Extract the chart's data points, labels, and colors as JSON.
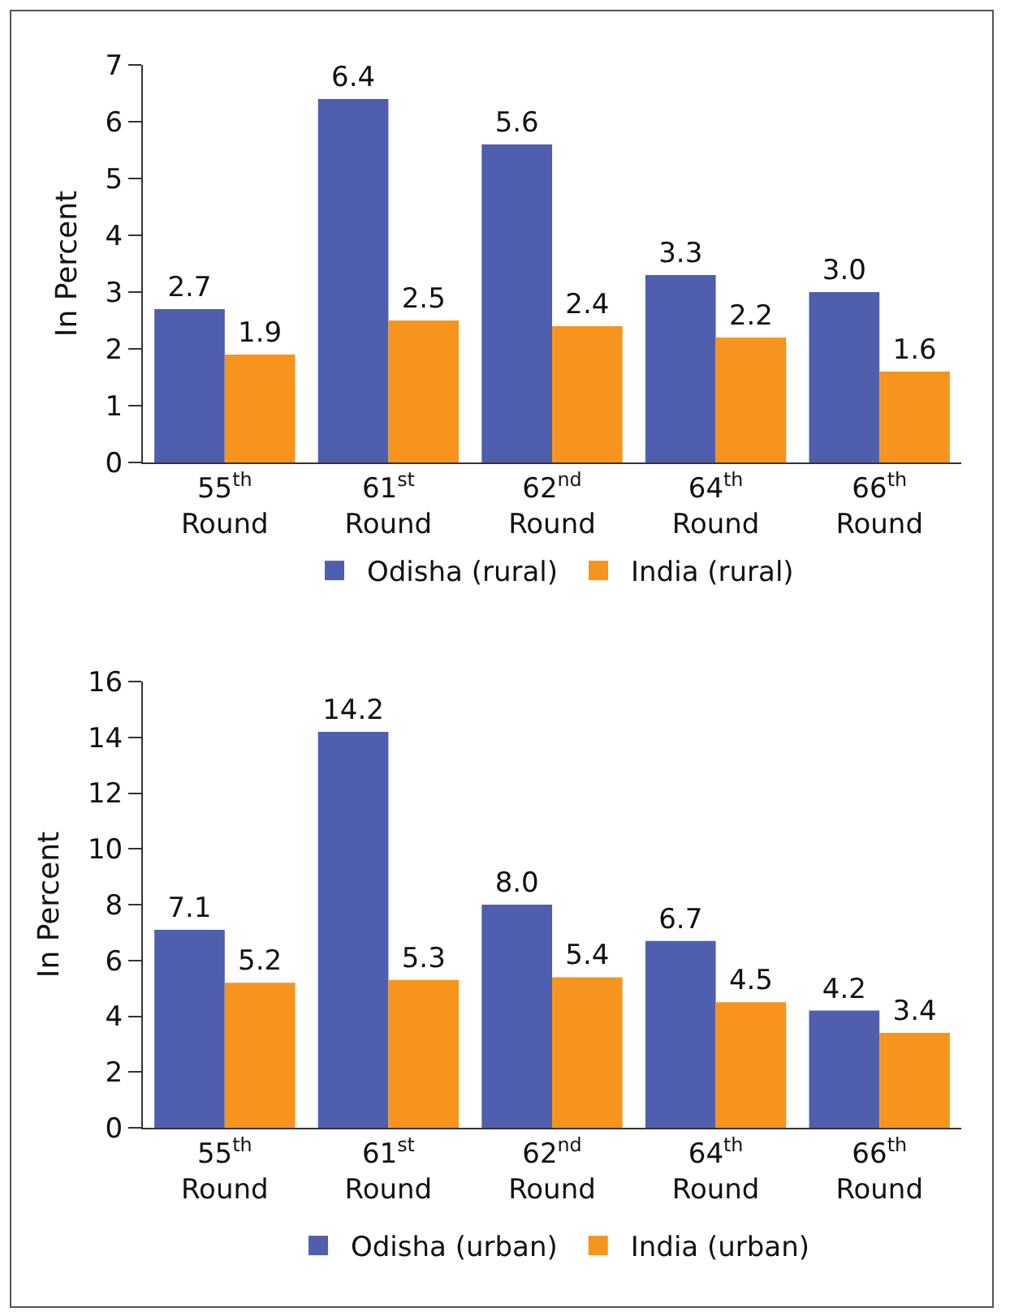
{
  "chart_data": [
    {
      "type": "bar",
      "ylabel": "In Percent",
      "categories": [
        "55$^{th}$\nRound",
        "61$^{st}$\nRound",
        "62$^{nd}$\nRound",
        "64$^{th}$\nRound",
        "66$^{th}$\nRound"
      ],
      "ylim": [
        0,
        7
      ],
      "yticks": [
        0,
        1,
        2,
        3,
        4,
        5,
        6,
        7
      ],
      "grid": false,
      "legend": "bottom",
      "series": [
        {
          "name": "Odisha (rural)",
          "color": "#4f5fae",
          "values": [
            2.7,
            6.4,
            5.6,
            3.3,
            3.0
          ],
          "value_labels": [
            "2.7",
            "6.4",
            "5.6",
            "3.3",
            "3.0"
          ]
        },
        {
          "name": "India (rural)",
          "color": "#f7941d",
          "values": [
            1.9,
            2.5,
            2.4,
            2.2,
            1.6
          ],
          "value_labels": [
            "1.9",
            "2.5",
            "2.4",
            "2.2",
            "1.6"
          ]
        }
      ]
    },
    {
      "type": "bar",
      "ylabel": "In Percent",
      "categories": [
        "55$^{th}$\nRound",
        "61$^{st}$\nRound",
        "62$^{nd}$\nRound",
        "64$^{th}$\nRound",
        "66$^{th}$\nRound"
      ],
      "ylim": [
        0,
        16
      ],
      "yticks": [
        0,
        2,
        4,
        6,
        8,
        10,
        12,
        14,
        16
      ],
      "grid": false,
      "legend": "bottom",
      "series": [
        {
          "name": "Odisha (urban)",
          "color": "#4f5fae",
          "values": [
            7.1,
            14.2,
            8.0,
            6.7,
            4.2
          ],
          "value_labels": [
            "7.1",
            "14.2",
            "8.0",
            "6.7",
            "4.2"
          ]
        },
        {
          "name": "India (urban)",
          "color": "#f7941d",
          "values": [
            5.2,
            5.3,
            5.4,
            4.5,
            3.4
          ],
          "value_labels": [
            "5.2",
            "5.3",
            "5.4",
            "4.5",
            "3.4"
          ]
        }
      ]
    }
  ]
}
